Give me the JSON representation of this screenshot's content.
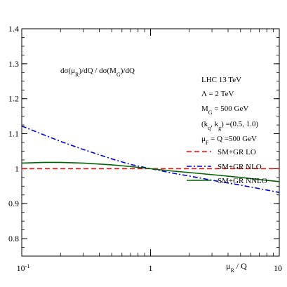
{
  "chart_data": {
    "type": "line",
    "title": "",
    "xlabel": "μ_R / Q",
    "ylabel": "",
    "x_scale": "log",
    "xlim": [
      0.1,
      10
    ],
    "ylim": [
      0.75,
      1.4
    ],
    "x_ticks": [
      {
        "value": 0.1,
        "label_base": "10",
        "label_exp": "-1"
      },
      {
        "value": 1,
        "label_base": "1",
        "label_exp": ""
      },
      {
        "value": 10,
        "label_base": "10",
        "label_exp": ""
      }
    ],
    "y_ticks": [
      {
        "value": 0.8,
        "label": "0.8"
      },
      {
        "value": 0.9,
        "label": "0.9"
      },
      {
        "value": 1.0,
        "label": "1"
      },
      {
        "value": 1.1,
        "label": "1.1"
      },
      {
        "value": 1.2,
        "label": "1.2"
      },
      {
        "value": 1.3,
        "label": "1.3"
      },
      {
        "value": 1.4,
        "label": "1.4"
      }
    ],
    "legend_position": "right-middle",
    "series": [
      {
        "name": "SM+GR LO",
        "color": "#ff0000",
        "dash": "dashed",
        "x": [
          0.1,
          0.2,
          0.5,
          1,
          2,
          5,
          10
        ],
        "y": [
          1.0,
          1.0,
          1.0,
          1.0,
          1.0,
          1.0,
          1.0
        ]
      },
      {
        "name": "SM+GR NLO",
        "color": "#0000dd",
        "dash": "dashdot",
        "x": [
          0.1,
          0.15,
          0.2,
          0.3,
          0.5,
          0.7,
          1,
          1.5,
          2,
          3,
          5,
          7,
          10
        ],
        "y": [
          1.122,
          1.096,
          1.078,
          1.055,
          1.028,
          1.012,
          1.0,
          0.987,
          0.979,
          0.967,
          0.953,
          0.943,
          0.932
        ]
      },
      {
        "name": "SM+GR NNLO",
        "color": "#006400",
        "dash": "solid",
        "x": [
          0.1,
          0.15,
          0.2,
          0.3,
          0.5,
          0.7,
          1,
          1.5,
          2,
          3,
          5,
          7,
          10
        ],
        "y": [
          1.016,
          1.018,
          1.018,
          1.016,
          1.011,
          1.006,
          1.0,
          0.993,
          0.989,
          0.983,
          0.975,
          0.969,
          0.963
        ]
      }
    ],
    "annotations": {
      "ratio_label": "dσ(μ_R)/dQ / dσ(M_G)/dQ",
      "info_lines": [
        {
          "base": "LHC 13 TeV",
          "sub": "",
          "rest": ""
        },
        {
          "base": "Λ = 2 TeV",
          "sub": "",
          "rest": ""
        },
        {
          "base": "M",
          "sub": "G",
          "rest": " = 500 GeV"
        },
        {
          "base": "(k",
          "sub": "q",
          "rest": ", k_g) =(0.5, 1.0)"
        },
        {
          "base": "μ",
          "sub": "F",
          "rest": " = Q =500 GeV"
        }
      ]
    }
  }
}
